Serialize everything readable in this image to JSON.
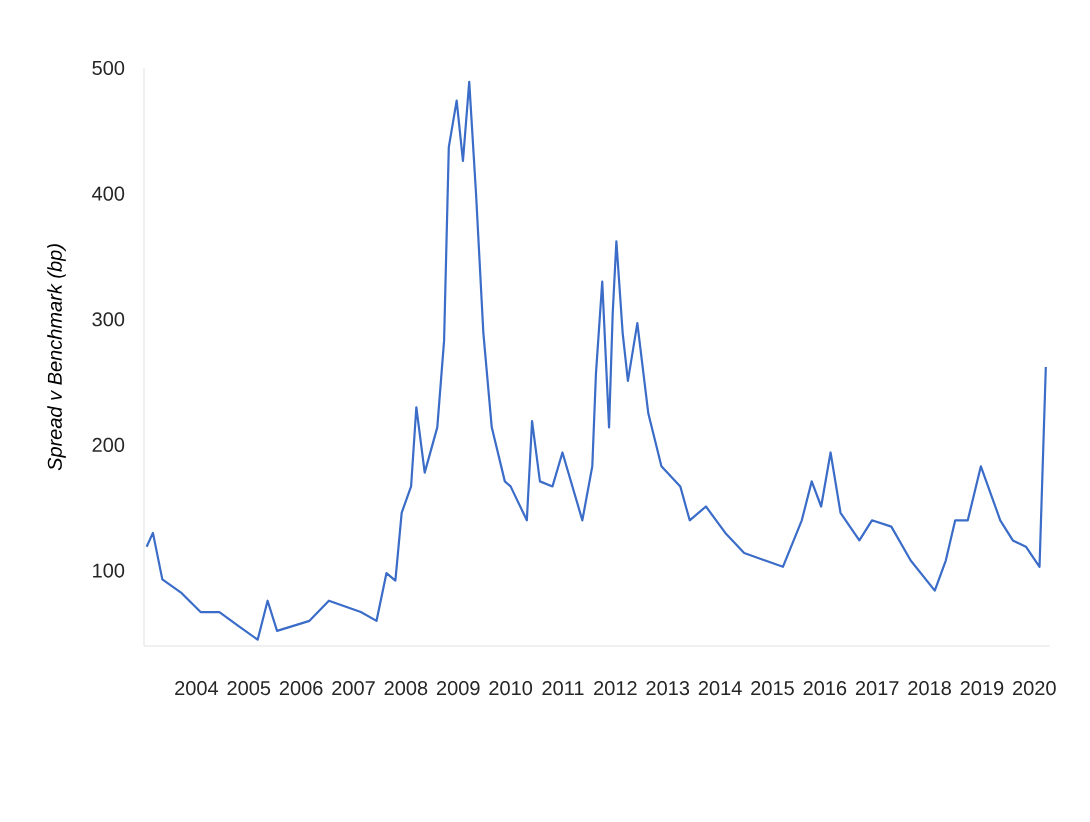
{
  "chart_data": {
    "type": "line",
    "ylabel": "Spread v Benchmark (bp)",
    "x": [
      2003.05,
      2003.17,
      2003.35,
      2003.72,
      2004.08,
      2004.44,
      2004.8,
      2005.17,
      2005.36,
      2005.54,
      2006.16,
      2006.53,
      2007.14,
      2007.44,
      2007.63,
      2007.8,
      2007.92,
      2008.1,
      2008.2,
      2008.36,
      2008.6,
      2008.73,
      2008.82,
      2008.97,
      2009.09,
      2009.21,
      2009.34,
      2009.48,
      2009.64,
      2009.89,
      2010.0,
      2010.31,
      2010.41,
      2010.56,
      2010.8,
      2010.99,
      2011.37,
      2011.56,
      2011.63,
      2011.75,
      2011.88,
      2011.95,
      2012.02,
      2012.14,
      2012.24,
      2012.42,
      2012.63,
      2012.88,
      2013.24,
      2013.42,
      2013.73,
      2014.1,
      2014.46,
      2015.2,
      2015.56,
      2015.75,
      2015.93,
      2016.11,
      2016.3,
      2016.66,
      2016.9,
      2017.27,
      2017.64,
      2018.1,
      2018.31,
      2018.49,
      2018.73,
      2018.98,
      2019.35,
      2019.59,
      2019.84,
      2020.1,
      2020.22
    ],
    "series": [
      {
        "color": "#3a6cc8",
        "values": [
          119,
          130,
          93,
          82,
          67,
          67,
          56,
          45,
          76,
          52,
          60,
          76,
          67,
          60,
          98,
          92,
          146,
          167,
          230,
          178,
          214,
          283,
          437,
          474,
          426,
          489,
          400,
          289,
          214,
          171,
          167,
          140,
          219,
          171,
          167,
          194,
          140,
          183,
          257,
          330,
          214,
          305,
          362,
          289,
          251,
          297,
          225,
          183,
          167,
          140,
          151,
          130,
          114,
          103,
          140,
          171,
          151,
          194,
          146,
          124,
          140,
          135,
          108,
          84,
          108,
          140,
          140,
          183,
          140,
          124,
          119,
          103,
          262
        ]
      }
    ],
    "xlim": [
      2003.0,
      2020.3
    ],
    "ylim": [
      40,
      500
    ],
    "xticks": [
      2004,
      2005,
      2006,
      2007,
      2008,
      2009,
      2010,
      2011,
      2012,
      2013,
      2014,
      2015,
      2016,
      2017,
      2018,
      2019,
      2020
    ],
    "yticks": [
      100,
      200,
      300,
      400,
      500
    ]
  }
}
